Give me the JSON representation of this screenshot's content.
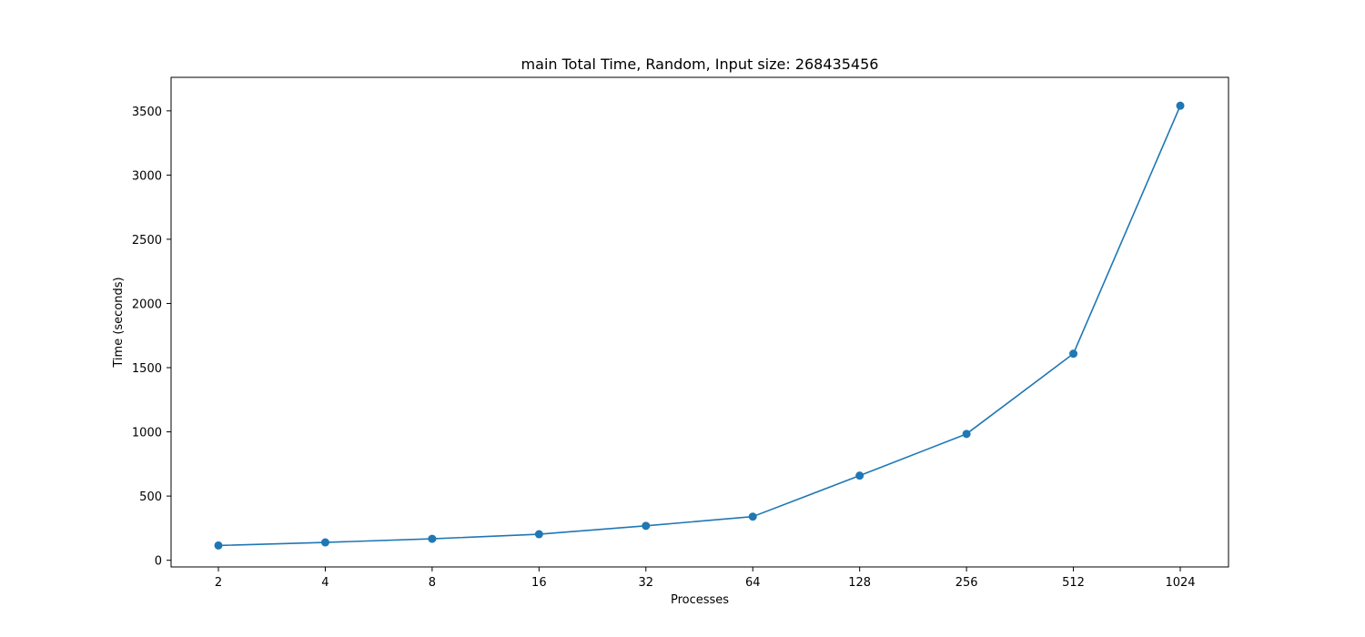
{
  "chart_data": {
    "type": "line",
    "title": "main Total Time, Random, Input size: 268435456",
    "xlabel": "Processes",
    "ylabel": "Time (seconds)",
    "x_scale": "log2",
    "categories": [
      "2",
      "4",
      "8",
      "16",
      "32",
      "64",
      "128",
      "256",
      "512",
      "1024"
    ],
    "x": [
      2,
      4,
      8,
      16,
      32,
      64,
      128,
      256,
      512,
      1024
    ],
    "series": [
      {
        "values": [
          115,
          139,
          167,
          203,
          268,
          340,
          659,
          984,
          1609,
          3540
        ],
        "color": "#1f77b4",
        "marker": "circle"
      }
    ],
    "yticks": [
      0,
      500,
      1000,
      1500,
      2000,
      2500,
      3000,
      3500
    ],
    "ytick_labels": [
      "0",
      "500",
      "1000",
      "1500",
      "2000",
      "2500",
      "3000",
      "3500"
    ],
    "ylim": [
      -52,
      3761
    ],
    "grid": false,
    "legend": false
  }
}
